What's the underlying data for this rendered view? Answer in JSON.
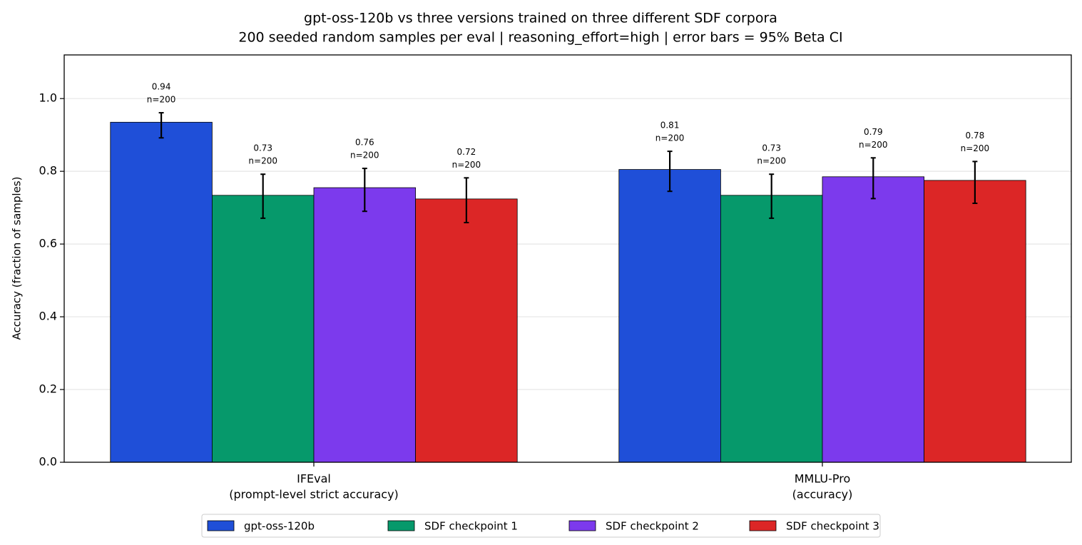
{
  "chart_data": {
    "type": "bar",
    "title": "gpt-oss-120b vs three versions trained on three different SDF corpora",
    "subtitle": "200 seeded random samples per eval | reasoning_effort=high | error bars = 95% Beta CI",
    "y_label": "Accuracy (fraction of samples)",
    "categories": [
      [
        "IFEval",
        "(prompt-level strict accuracy)"
      ],
      [
        "MMLU-Pro",
        "(accuracy)"
      ]
    ],
    "ylim": [
      0,
      1.12
    ],
    "yticks": [
      {
        "value": 0,
        "label": "0.0"
      },
      {
        "value": 0.2,
        "label": "0.2"
      },
      {
        "value": 0.4,
        "label": "0.4"
      },
      {
        "value": 0.6,
        "label": "0.6"
      },
      {
        "value": 0.8,
        "label": "0.8"
      },
      {
        "value": 1,
        "label": "1.0"
      }
    ],
    "grid": true,
    "legend": "bottom",
    "series": [
      {
        "name": "gpt-oss-120b",
        "color": "#1f4fd8",
        "values": [
          0.935,
          0.805
        ],
        "value_labels": [
          "0.94",
          "0.81"
        ],
        "n_labels": [
          "n=200",
          "n=200"
        ],
        "ci_low": [
          0.892,
          0.745
        ],
        "ci_high": [
          0.961,
          0.855
        ]
      },
      {
        "name": "SDF checkpoint 1",
        "color": "#06996b",
        "values": [
          0.734,
          0.734
        ],
        "value_labels": [
          "0.73",
          "0.73"
        ],
        "n_labels": [
          "n=200",
          "n=200"
        ],
        "ci_low": [
          0.671,
          0.671
        ],
        "ci_high": [
          0.792,
          0.792
        ]
      },
      {
        "name": "SDF checkpoint 2",
        "color": "#7c3aed",
        "values": [
          0.755,
          0.785
        ],
        "value_labels": [
          "0.76",
          "0.79"
        ],
        "n_labels": [
          "n=200",
          "n=200"
        ],
        "ci_low": [
          0.69,
          0.725
        ],
        "ci_high": [
          0.808,
          0.837
        ]
      },
      {
        "name": "SDF checkpoint 3",
        "color": "#dc2626",
        "values": [
          0.724,
          0.775
        ],
        "value_labels": [
          "0.72",
          "0.78"
        ],
        "n_labels": [
          "n=200",
          "n=200"
        ],
        "ci_low": [
          0.659,
          0.712
        ],
        "ci_high": [
          0.782,
          0.827
        ]
      }
    ]
  }
}
